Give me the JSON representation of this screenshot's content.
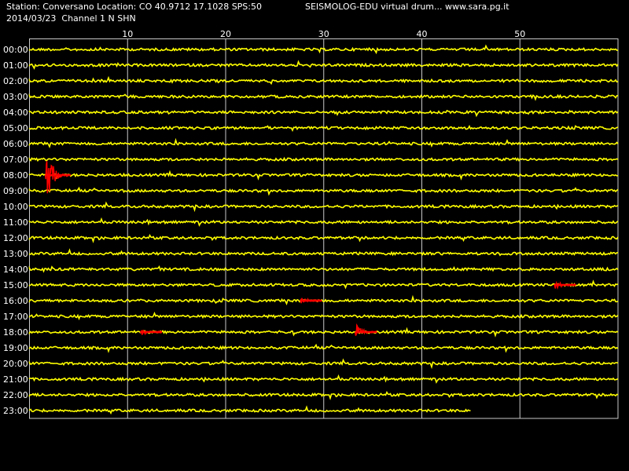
{
  "header": {
    "station_line": "Station: Conversano Location: CO 40.9712 17.1028 SPS:50",
    "date_line": "2014/03/23  Channel 1 N SHN",
    "title": "SEISMOLOG-EDU virtual drum... www.sara.pg.it"
  },
  "chart_data": {
    "type": "line",
    "title": "SEISMOLOG-EDU virtual drum... www.sara.pg.it",
    "x_unit_note": "",
    "xlim": [
      0,
      60
    ],
    "x_ticks": [
      10,
      20,
      30,
      40,
      50
    ],
    "x_tick_labels": [
      "10",
      "20",
      "30",
      "40",
      "50"
    ],
    "rows": [
      "00:00",
      "01:00",
      "02:00",
      "03:00",
      "04:00",
      "05:00",
      "06:00",
      "07:00",
      "08:00",
      "09:00",
      "10:00",
      "11:00",
      "12:00",
      "13:00",
      "14:00",
      "15:00",
      "16:00",
      "17:00",
      "18:00",
      "19:00",
      "20:00",
      "21:00",
      "22:00",
      "23:00"
    ],
    "last_row_end_minute": 45,
    "grid": true,
    "trace_color": "#ffff00",
    "event_color": "#ff0000",
    "grid_color": "#c8c8c8",
    "events": [
      {
        "row": "08:00",
        "minute": 1.6,
        "duration": 2.6,
        "amplitude": "large"
      },
      {
        "row": "15:00",
        "minute": 53.5,
        "duration": 2.2,
        "amplitude": "small"
      },
      {
        "row": "16:00",
        "minute": 27.6,
        "duration": 2.2,
        "amplitude": "small"
      },
      {
        "row": "18:00",
        "minute": 11.3,
        "duration": 2.2,
        "amplitude": "small"
      },
      {
        "row": "18:00",
        "minute": 33.2,
        "duration": 2.2,
        "amplitude": "medium"
      }
    ]
  }
}
